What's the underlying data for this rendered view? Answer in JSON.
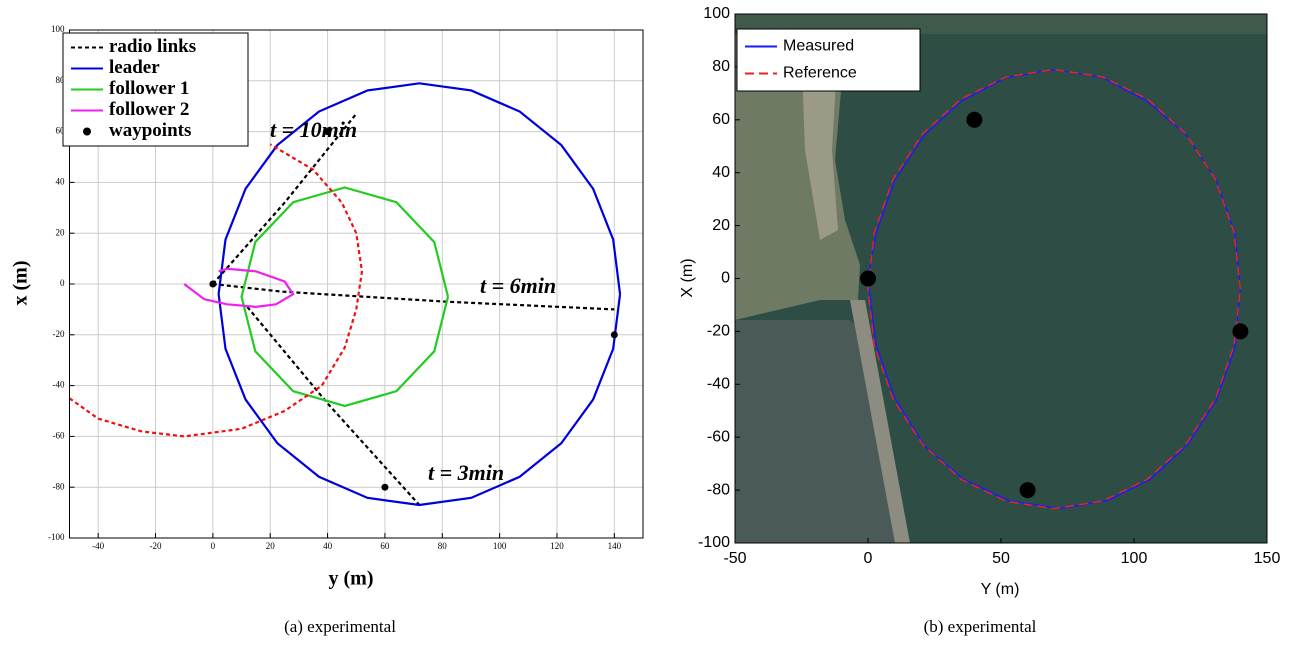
{
  "chart_data": [
    {
      "type": "line",
      "caption": "(a) experimental",
      "xlabel": "y (m)",
      "ylabel": "x (m)",
      "xlim": [
        -50,
        150
      ],
      "ylim": [
        -100,
        100
      ],
      "xticks": [
        -40,
        -20,
        0,
        20,
        40,
        60,
        80,
        100,
        120,
        140
      ],
      "yticks": [
        -100,
        -80,
        -60,
        -40,
        -20,
        0,
        20,
        40,
        60,
        80,
        100
      ],
      "grid": true,
      "legend": "top-left",
      "annotations": [
        "t = 10min",
        "t = 6min",
        "t = 3min"
      ],
      "series": [
        {
          "name": "radio links",
          "color": "#000000",
          "dash": true,
          "x": [
            0,
            25,
            50,
            null,
            0,
            24,
            82,
            140,
            null,
            12,
            40,
            72
          ],
          "values": [
            0,
            32,
            67,
            null,
            0,
            -3,
            -7,
            -10,
            null,
            -9,
            -47,
            -87
          ]
        },
        {
          "name": "leader",
          "color": "#0000dd",
          "x": [
            142,
            139.6,
            132.6,
            121.5,
            107,
            90.1,
            72,
            53.9,
            37,
            22.5,
            11.4,
            4.4,
            2,
            4.4,
            11.4,
            22.5,
            37,
            53.9,
            72,
            90.1,
            107,
            121.5,
            132.6,
            139.6,
            142
          ],
          "values": [
            -4,
            17.5,
            37.5,
            54.7,
            67.9,
            76.2,
            79,
            76.2,
            67.9,
            54.7,
            37.5,
            17.5,
            -4,
            -25.5,
            -45.5,
            -62.7,
            -75.9,
            -84.2,
            -87,
            -84.2,
            -75.9,
            -62.7,
            -45.5,
            -25.5,
            -4
          ]
        },
        {
          "name": "follower 1",
          "color": "#22cc22",
          "x": [
            82,
            77.2,
            64,
            46,
            28,
            14.8,
            10,
            14.8,
            28,
            46,
            64,
            77.2,
            82
          ],
          "values": [
            -5,
            16.5,
            32.2,
            38,
            32.2,
            16.5,
            -5,
            -26.5,
            -42.2,
            -48,
            -42.2,
            -26.5,
            -5
          ]
        },
        {
          "name": "follower 2",
          "color": "#ee22ee",
          "x": [
            -10,
            -3,
            5,
            15,
            22,
            28,
            25,
            15,
            5,
            2
          ],
          "values": [
            0,
            -6,
            -8,
            -9,
            -8,
            -4,
            1,
            5,
            6,
            5
          ]
        },
        {
          "color": "#ee1111",
          "dash": true,
          "x": [
            -50,
            -40,
            -25,
            -10,
            10,
            25,
            38,
            46,
            50,
            52,
            50,
            45,
            35,
            20
          ],
          "values": [
            -45,
            -53,
            -58,
            -60,
            -57,
            -50,
            -40,
            -25,
            -10,
            5,
            20,
            32,
            45,
            55
          ]
        },
        {
          "name": "waypoints",
          "color": "#000000",
          "marker": "dot",
          "x": [
            0,
            40,
            60,
            140
          ],
          "values": [
            0,
            60,
            -80,
            -20
          ]
        }
      ]
    },
    {
      "type": "line",
      "caption": "(b) experimental",
      "xlabel": "Y (m)",
      "ylabel": "X (m)",
      "xlim": [
        -50,
        150
      ],
      "ylim": [
        -100,
        100
      ],
      "xticks": [
        -50,
        0,
        50,
        100,
        150
      ],
      "yticks": [
        -100,
        -80,
        -60,
        -40,
        -20,
        0,
        20,
        40,
        60,
        80,
        100
      ],
      "grid": false,
      "legend": "top-left",
      "series": [
        {
          "name": "Measured",
          "color": "#1a1aff",
          "x": [
            140,
            138,
            131,
            120,
            105,
            88,
            70,
            52,
            35,
            21,
            10,
            3,
            0,
            3,
            10,
            21,
            36,
            53,
            72,
            90,
            106,
            120,
            131,
            138,
            140
          ],
          "values": [
            -4,
            17,
            37,
            54,
            67,
            76,
            79,
            76,
            67,
            54,
            37,
            17,
            0,
            -25,
            -45,
            -63,
            -76,
            -84,
            -87,
            -84,
            -76,
            -63,
            -46,
            -26,
            -4
          ]
        },
        {
          "name": "Reference",
          "color": "#ee2222",
          "dash": true,
          "x": [
            140,
            137.6,
            130.6,
            119.5,
            105,
            88.1,
            70,
            51.9,
            35,
            20.5,
            9.4,
            2.4,
            0,
            2.4,
            9.4,
            20.5,
            35,
            51.9,
            70,
            88.1,
            105,
            119.5,
            130.6,
            137.6,
            140
          ],
          "values": [
            -4,
            17.5,
            37.5,
            54.7,
            67.9,
            76.2,
            79,
            76.2,
            67.9,
            54.7,
            37.5,
            17.5,
            -4,
            -25.5,
            -45.5,
            -62.7,
            -75.9,
            -84.2,
            -87,
            -84.2,
            -75.9,
            -62.7,
            -45.5,
            -25.5,
            -4
          ]
        },
        {
          "color": "#000000",
          "marker": "bigdot",
          "x": [
            0,
            40,
            60,
            140
          ],
          "values": [
            0,
            60,
            -80,
            -20
          ]
        }
      ]
    }
  ]
}
